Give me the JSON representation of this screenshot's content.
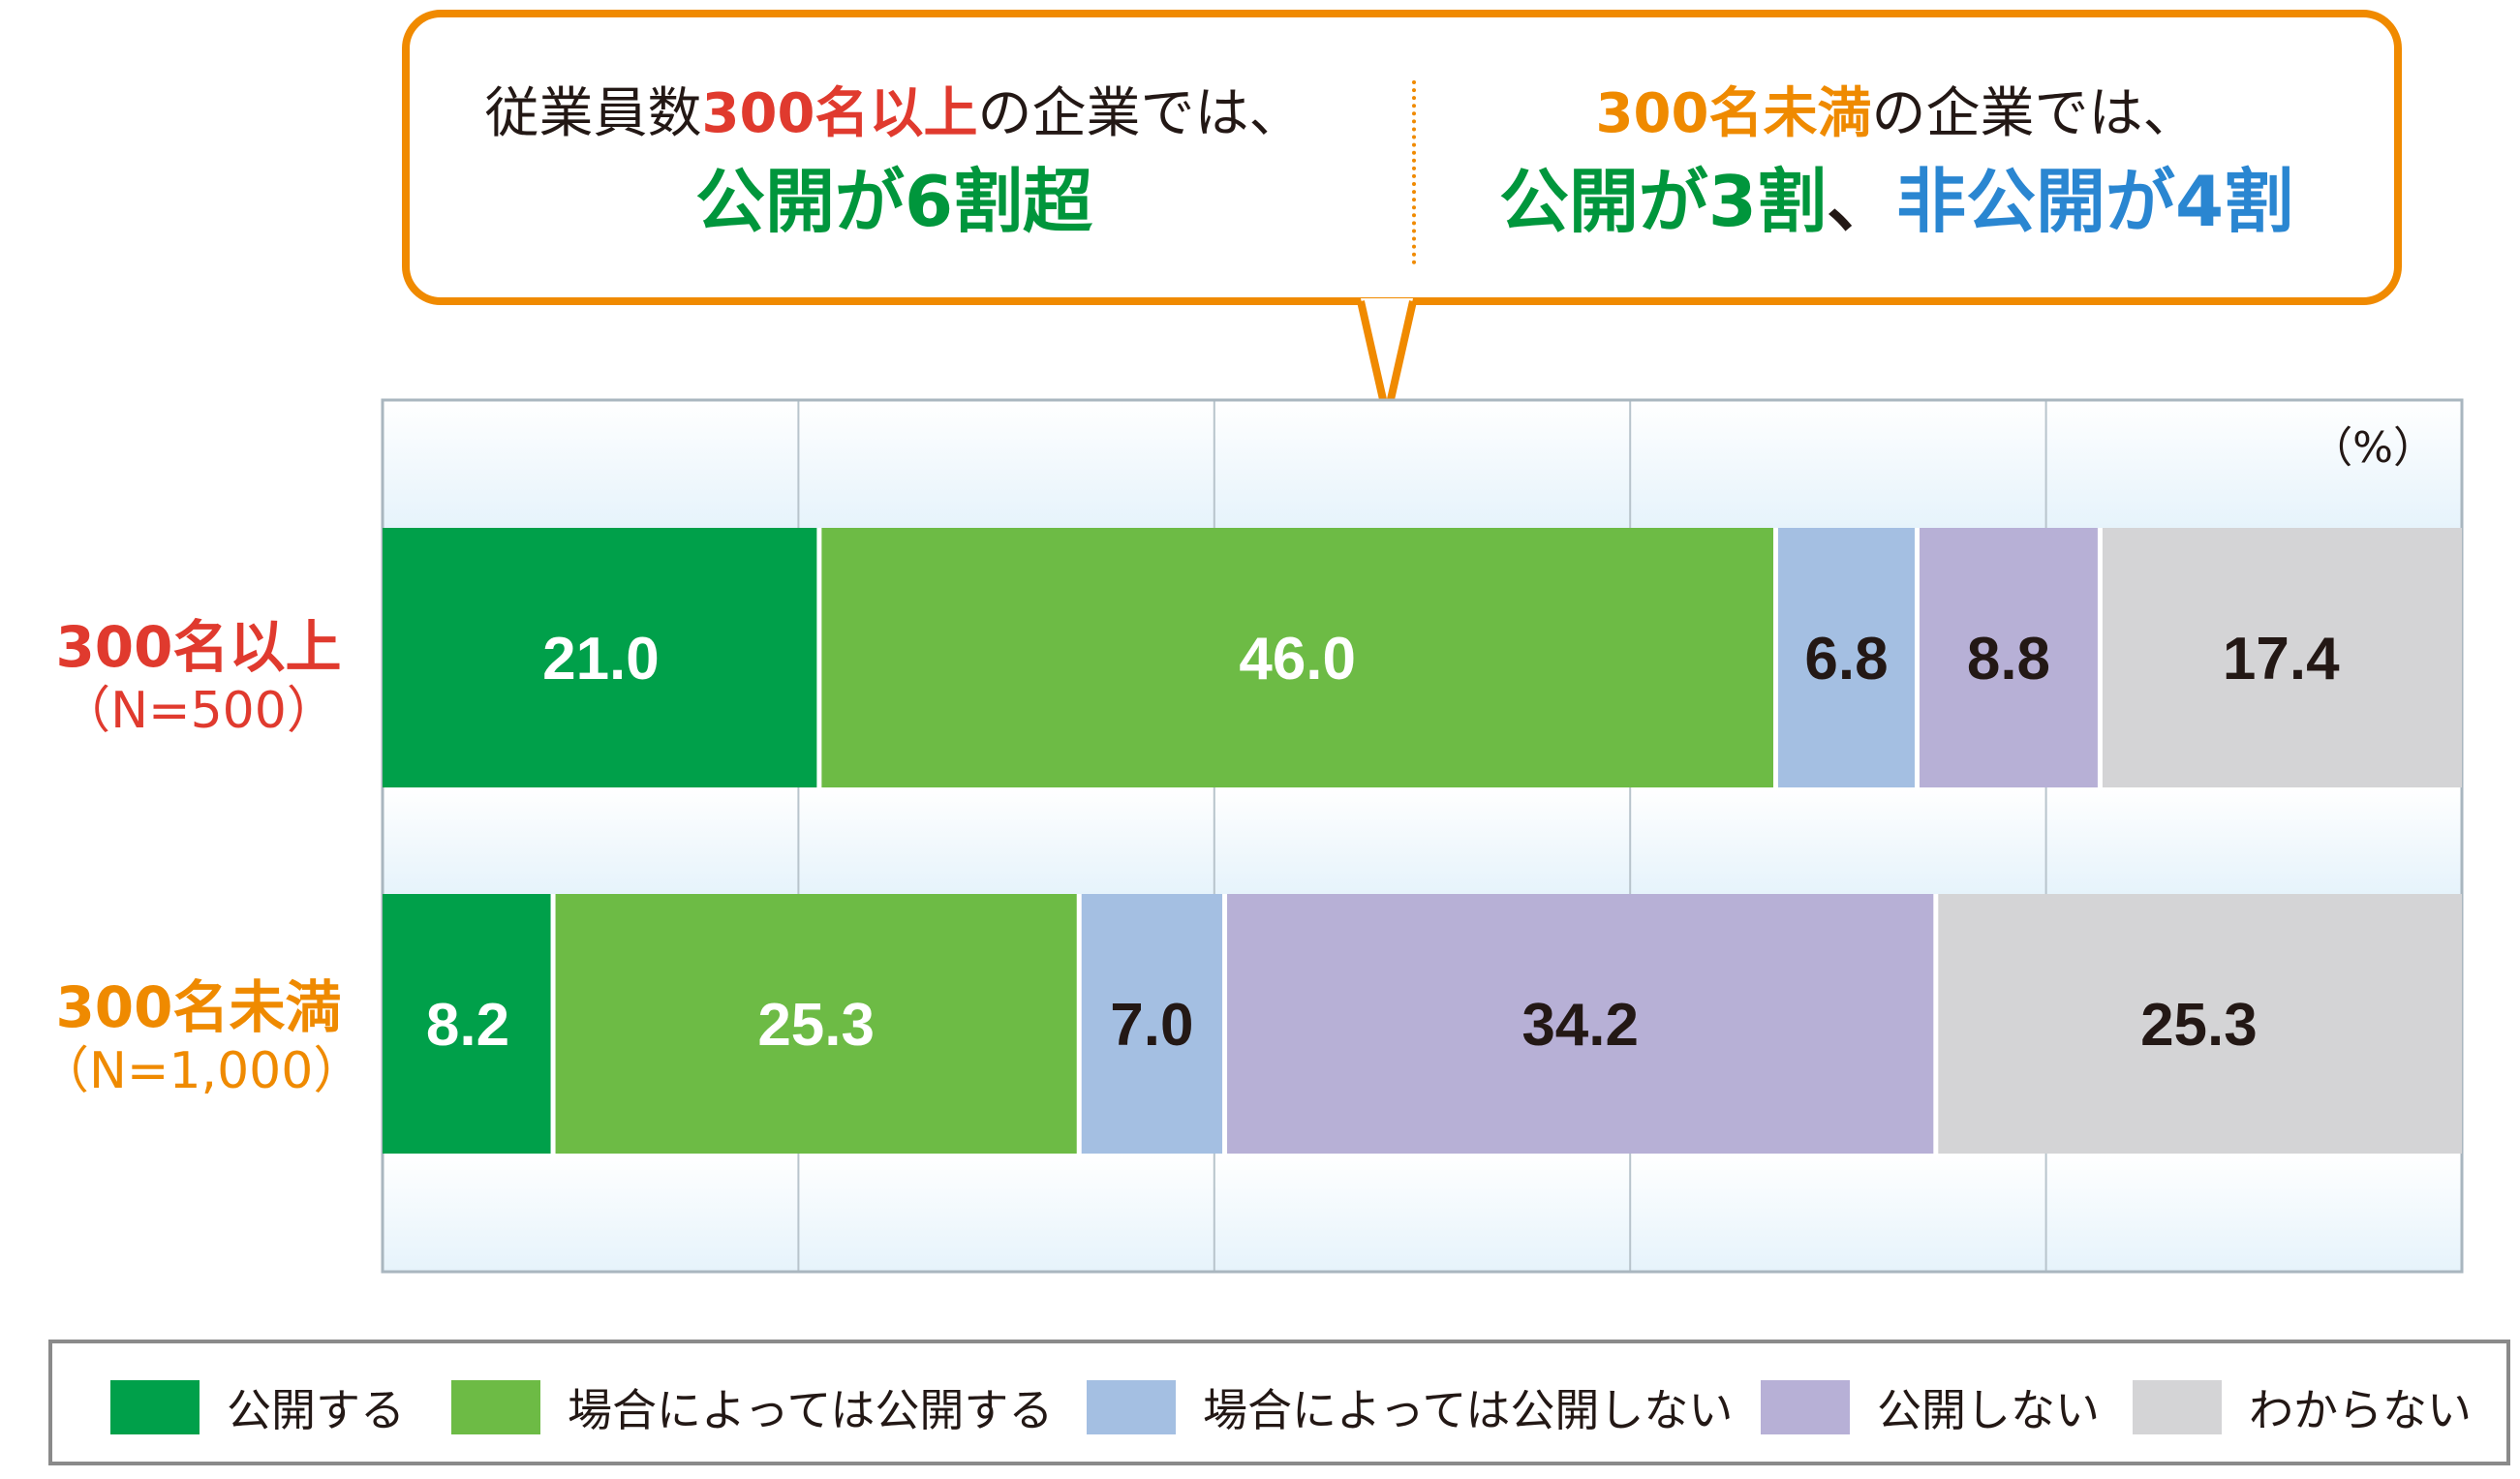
{
  "callout": {
    "left": {
      "line1_pre": "従業員数",
      "line1_em": "300名以上",
      "line1_post": "の企業では、",
      "line2": "公開が6割超"
    },
    "right": {
      "line1_em": "300名未満",
      "line1_post": "の企業では、",
      "line2_a": "公開が3割",
      "line2_sep": "、",
      "line2_b": "非公開が4割"
    }
  },
  "colors": {
    "accent_orange": "#f08a00",
    "label_red": "#e03a2e",
    "label_orange": "#ef8a00"
  },
  "chart_data": {
    "type": "bar",
    "orientation": "horizontal-stacked-100",
    "unit_label": "（%）",
    "categories": [
      {
        "name": "300名以上",
        "n": "（N=500）",
        "color": "#e03a2e"
      },
      {
        "name": "300名未満",
        "n": "（N=1,000）",
        "color": "#ef8a00"
      }
    ],
    "series": [
      {
        "name": "公開する",
        "color": "#00a04a",
        "text_color": "#ffffff",
        "values": [
          21.0,
          8.2
        ],
        "labels": [
          "21.0",
          "8.2"
        ]
      },
      {
        "name": "場合によっては公開する",
        "color": "#6dbb45",
        "text_color": "#ffffff",
        "values": [
          46.0,
          25.3
        ],
        "labels": [
          "46.0",
          "25.3"
        ]
      },
      {
        "name": "場合によっては公開しない",
        "color": "#a4bfe2",
        "text_color": "#231815",
        "values": [
          6.8,
          7.0
        ],
        "labels": [
          "6.8",
          "7.0"
        ]
      },
      {
        "name": "公開しない",
        "color": "#b7b0d6",
        "text_color": "#231815",
        "values": [
          8.8,
          34.2
        ],
        "labels": [
          "8.8",
          "34.2"
        ]
      },
      {
        "name": "わからない",
        "color": "#d4d4d6",
        "text_color": "#231815",
        "values": [
          17.4,
          25.3
        ],
        "labels": [
          "17.4",
          "25.3"
        ]
      }
    ],
    "xlim": [
      0,
      100
    ],
    "grid": true,
    "legend_position": "bottom"
  }
}
